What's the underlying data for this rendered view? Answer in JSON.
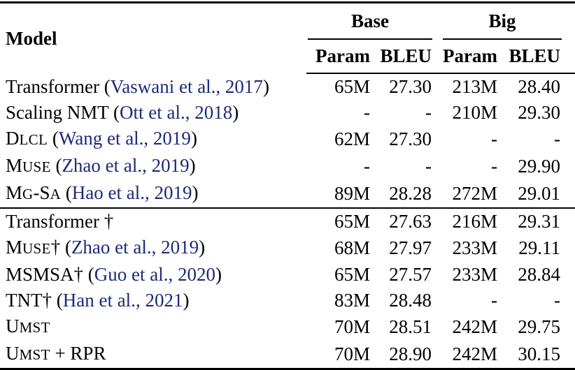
{
  "colors": {
    "citation": "#1b2a78",
    "text": "#000000",
    "background": "#ffffff"
  },
  "table": {
    "header": {
      "model": "Model",
      "groups": [
        {
          "label": "Base"
        },
        {
          "label": "Big"
        }
      ],
      "subheaders": [
        "Param",
        "BLEU",
        "Param",
        "BLEU"
      ]
    },
    "sections": [
      {
        "rows": [
          {
            "name_parts": [
              {
                "t": "Transformer ("
              },
              {
                "t": "Vaswani et al., 2017",
                "c": "cite"
              },
              {
                "t": ")"
              }
            ],
            "base_param": "65M",
            "base_bleu": "27.30",
            "big_param": "213M",
            "big_bleu": "28.40"
          },
          {
            "name_parts": [
              {
                "t": "Scaling NMT ("
              },
              {
                "t": "Ott et al., 2018",
                "c": "cite"
              },
              {
                "t": ")"
              }
            ],
            "base_param": "-",
            "base_bleu": "-",
            "big_param": "210M",
            "big_bleu": "29.30"
          },
          {
            "name_parts": [
              {
                "t": "D"
              },
              {
                "t": "LCL",
                "c": "sc"
              },
              {
                "t": " ("
              },
              {
                "t": "Wang et al., 2019",
                "c": "cite"
              },
              {
                "t": ")"
              }
            ],
            "base_param": "62M",
            "base_bleu": "27.30",
            "big_param": "-",
            "big_bleu": "-"
          },
          {
            "name_parts": [
              {
                "t": "M"
              },
              {
                "t": "USE",
                "c": "sc"
              },
              {
                "t": " ("
              },
              {
                "t": "Zhao et al., 2019",
                "c": "cite"
              },
              {
                "t": ")"
              }
            ],
            "base_param": "-",
            "base_bleu": "-",
            "big_param": "-",
            "big_bleu": "29.90"
          },
          {
            "name_parts": [
              {
                "t": "M"
              },
              {
                "t": "G",
                "c": "sc"
              },
              {
                "t": "-S"
              },
              {
                "t": "A",
                "c": "sc"
              },
              {
                "t": " ("
              },
              {
                "t": "Hao et al., 2019",
                "c": "cite"
              },
              {
                "t": ")"
              }
            ],
            "base_param": "89M",
            "base_bleu": "28.28",
            "big_param": "272M",
            "big_bleu": "29.01"
          }
        ]
      },
      {
        "rows": [
          {
            "name_parts": [
              {
                "t": "Transformer †"
              }
            ],
            "base_param": "65M",
            "base_bleu": "27.63",
            "big_param": "216M",
            "big_bleu": "29.31"
          },
          {
            "name_parts": [
              {
                "t": "M"
              },
              {
                "t": "USE",
                "c": "sc"
              },
              {
                "t": "† ("
              },
              {
                "t": "Zhao et al., 2019",
                "c": "cite"
              },
              {
                "t": ")"
              }
            ],
            "base_param": "68M",
            "base_bleu": "27.97",
            "big_param": "233M",
            "big_bleu": "29.11"
          },
          {
            "name_parts": [
              {
                "t": "MSMSA† ("
              },
              {
                "t": "Guo et al., 2020",
                "c": "cite"
              },
              {
                "t": ")"
              }
            ],
            "base_param": "65M",
            "base_bleu": "27.57",
            "big_param": "233M",
            "big_bleu": "28.84"
          },
          {
            "name_parts": [
              {
                "t": "TNT† ("
              },
              {
                "t": "Han et al., 2021",
                "c": "cite"
              },
              {
                "t": ")"
              }
            ],
            "base_param": "83M",
            "base_bleu": "28.48",
            "big_param": "-",
            "big_bleu": "-"
          },
          {
            "name_parts": [
              {
                "t": "U"
              },
              {
                "t": "MST",
                "c": "sc"
              }
            ],
            "base_param": "70M",
            "base_bleu": "28.51",
            "big_param": "242M",
            "big_bleu": "29.75"
          },
          {
            "name_parts": [
              {
                "t": "U"
              },
              {
                "t": "MST",
                "c": "sc"
              },
              {
                "t": " + RPR"
              }
            ],
            "base_param": "70M",
            "base_bleu": "28.90",
            "big_param": "242M",
            "big_bleu": "30.15"
          }
        ]
      }
    ]
  }
}
